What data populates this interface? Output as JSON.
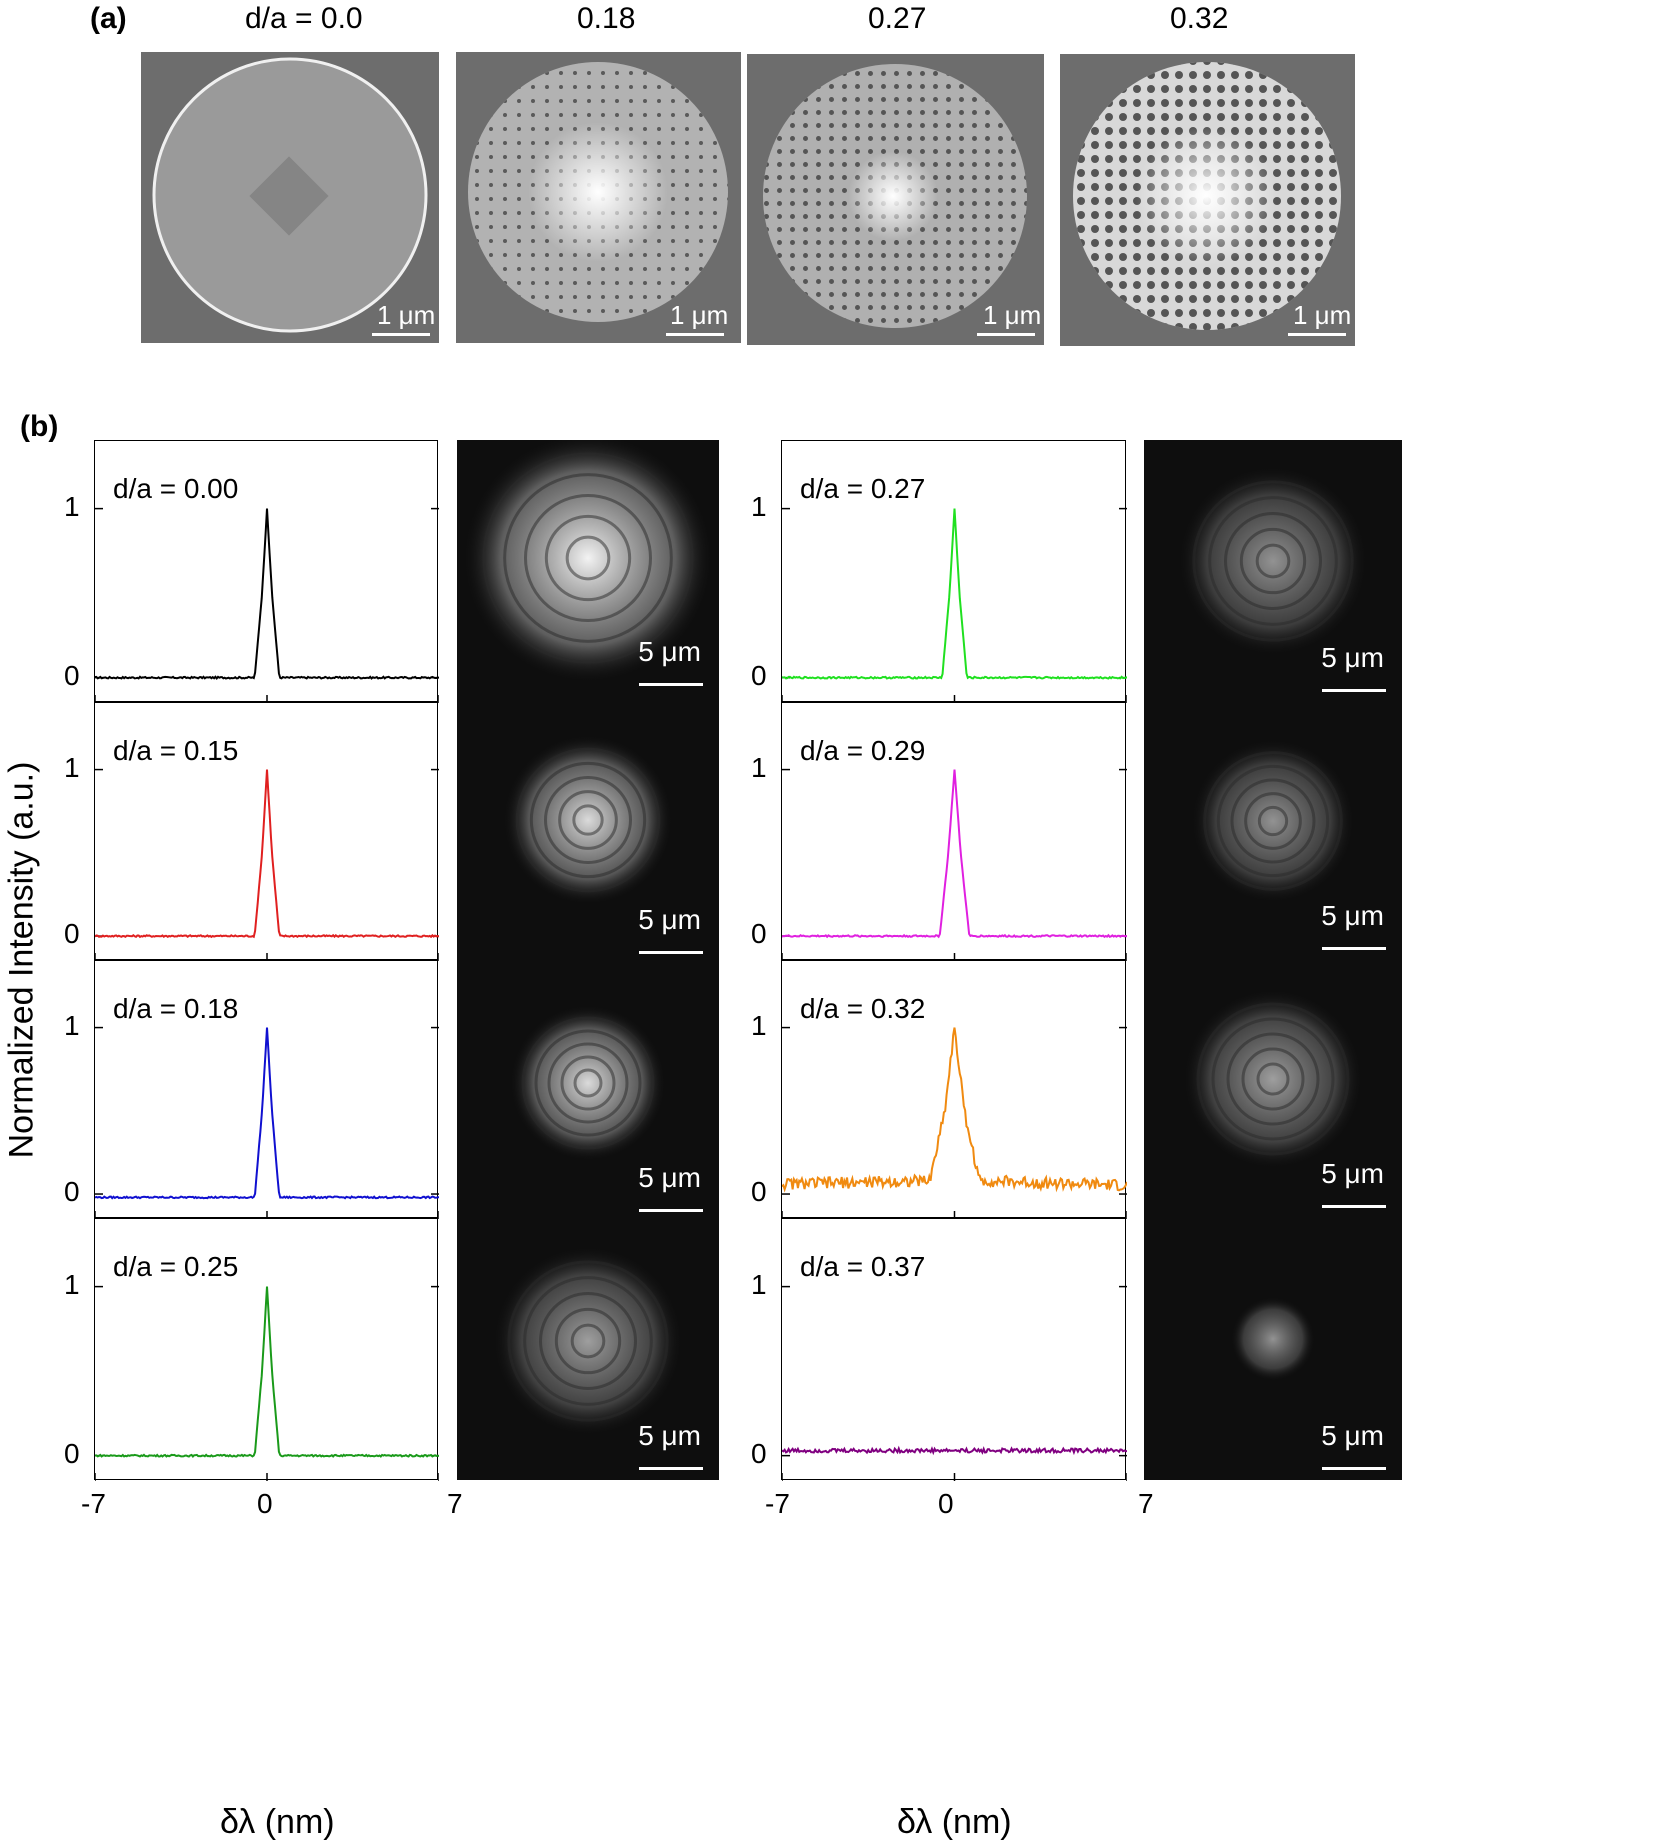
{
  "panel_a": {
    "label": "(a)",
    "column_labels": [
      "d/a = 0.0",
      "0.18",
      "0.27",
      "0.32"
    ],
    "scale_bar_label": "1 μm"
  },
  "panel_b": {
    "label": "(b)",
    "ylabel": "Normalized Intensity (a.u.)",
    "xlabel": "δλ (nm)",
    "x_ticks": [
      "-7",
      "0",
      "7"
    ],
    "y_ticks": [
      "0",
      "1"
    ],
    "image_scale_bar_label": "5 μm"
  },
  "chart_data": [
    {
      "type": "line",
      "title": "d/a = 0.00",
      "color": "#000000",
      "x": [
        -7,
        -0.5,
        -0.2,
        0,
        0.2,
        0.5,
        7
      ],
      "y": [
        0,
        0,
        0.5,
        1,
        0.5,
        0,
        0
      ],
      "xlim": [
        -7,
        7
      ],
      "ylim": [
        -0.15,
        1.4
      ]
    },
    {
      "type": "line",
      "title": "d/a = 0.15",
      "color": "#e02020",
      "x": [
        -7,
        -0.5,
        -0.2,
        0,
        0.2,
        0.5,
        7
      ],
      "y": [
        0,
        0,
        0.5,
        1,
        0.5,
        0,
        0
      ],
      "xlim": [
        -7,
        7
      ],
      "ylim": [
        -0.15,
        1.4
      ]
    },
    {
      "type": "line",
      "title": "d/a = 0.18",
      "color": "#1010d0",
      "x": [
        -7,
        -0.5,
        -0.2,
        0,
        0.2,
        0.5,
        7
      ],
      "y": [
        -0.02,
        -0.02,
        0.5,
        1,
        0.5,
        -0.02,
        -0.02
      ],
      "xlim": [
        -7,
        7
      ],
      "ylim": [
        -0.15,
        1.4
      ]
    },
    {
      "type": "line",
      "title": "d/a = 0.25",
      "color": "#1a9a1a",
      "x": [
        -7,
        -0.5,
        -0.2,
        0,
        0.2,
        0.5,
        7
      ],
      "y": [
        0,
        0,
        0.5,
        1,
        0.5,
        0,
        0
      ],
      "xlim": [
        -7,
        7
      ],
      "ylim": [
        -0.15,
        1.4
      ]
    },
    {
      "type": "line",
      "title": "d/a = 0.27",
      "color": "#20e020",
      "x": [
        -7,
        -0.5,
        -0.2,
        0,
        0.2,
        0.5,
        7
      ],
      "y": [
        0,
        0,
        0.5,
        1,
        0.5,
        0,
        0
      ],
      "xlim": [
        -7,
        7
      ],
      "ylim": [
        -0.15,
        1.4
      ]
    },
    {
      "type": "line",
      "title": "d/a = 0.29",
      "color": "#e020e0",
      "x": [
        -7,
        -0.6,
        -0.25,
        0,
        0.25,
        0.6,
        7
      ],
      "y": [
        0,
        0,
        0.5,
        1,
        0.5,
        0,
        0
      ],
      "xlim": [
        -7,
        7
      ],
      "ylim": [
        -0.15,
        1.4
      ]
    },
    {
      "type": "line",
      "title": "d/a = 0.32",
      "color": "#f08a10",
      "x": [
        -7,
        -1.0,
        -0.4,
        0,
        0.4,
        1.0,
        7
      ],
      "y": [
        0.06,
        0.08,
        0.5,
        1,
        0.5,
        0.08,
        0.05
      ],
      "xlim": [
        -7,
        7
      ],
      "ylim": [
        -0.15,
        1.4
      ]
    },
    {
      "type": "line",
      "title": "d/a = 0.37",
      "color": "#800080",
      "x": [
        -7,
        0,
        7
      ],
      "y": [
        0.03,
        0.03,
        0.03
      ],
      "xlim": [
        -7,
        7
      ],
      "ylim": [
        -0.15,
        1.4
      ]
    }
  ]
}
